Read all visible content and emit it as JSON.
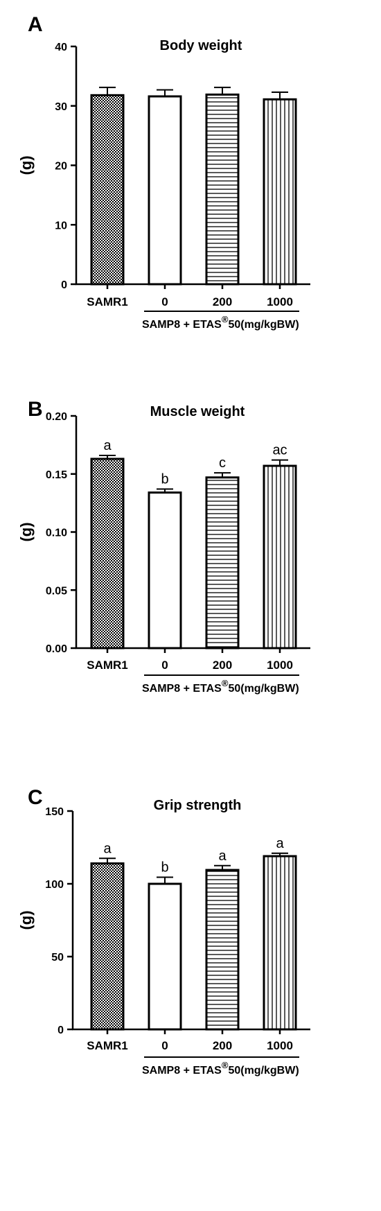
{
  "group_label": {
    "main": "SAMP8  + ETAS",
    "superscript": "®",
    "suffix": "50(mg/kgBW)"
  },
  "chart_data": [
    {
      "panel": "A",
      "type": "bar",
      "title": "Body weight",
      "ylabel": "(g)",
      "ylim": [
        0,
        40
      ],
      "yticks": [
        "0",
        "10",
        "20",
        "30",
        "40"
      ],
      "categories": [
        "SAMR1",
        "0",
        "200",
        "1000"
      ],
      "values": [
        31.8,
        31.6,
        31.9,
        31.1
      ],
      "errors": [
        1.3,
        1.1,
        1.2,
        1.2
      ],
      "patterns": [
        "checker",
        "none",
        "hlines",
        "vlines"
      ],
      "labels": [
        "",
        "",
        "",
        ""
      ],
      "grid": false
    },
    {
      "panel": "B",
      "type": "bar",
      "title": "Muscle weight",
      "ylabel": "(g)",
      "ylim": [
        0,
        0.2
      ],
      "yticks": [
        "0.00",
        "0.05",
        "0.10",
        "0.15",
        "0.20"
      ],
      "categories": [
        "SAMR1",
        "0",
        "200",
        "1000"
      ],
      "values": [
        0.163,
        0.134,
        0.147,
        0.157
      ],
      "errors": [
        0.003,
        0.003,
        0.004,
        0.005
      ],
      "patterns": [
        "checker",
        "none",
        "hlines",
        "vlines"
      ],
      "labels": [
        "a",
        "b",
        "c",
        "ac"
      ],
      "grid": false
    },
    {
      "panel": "C",
      "type": "bar",
      "title": "Grip strength",
      "ylabel": "(g)",
      "ylim": [
        0,
        150
      ],
      "yticks": [
        "0",
        "50",
        "100",
        "150"
      ],
      "categories": [
        "SAMR1",
        "0",
        "200",
        "1000"
      ],
      "values": [
        114,
        100,
        109.5,
        119
      ],
      "errors": [
        3.5,
        4.5,
        3,
        2
      ],
      "patterns": [
        "checker",
        "none",
        "hlines",
        "vlines"
      ],
      "labels": [
        "a",
        "b",
        "a",
        "a"
      ],
      "grid": false
    }
  ]
}
